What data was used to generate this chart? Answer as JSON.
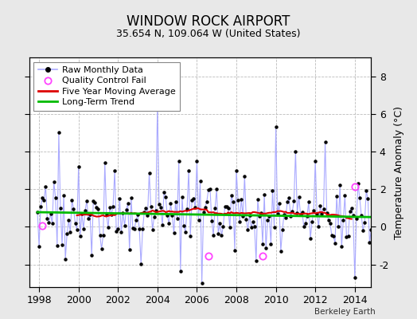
{
  "title": "WINDOW ROCK AIRPORT",
  "subtitle": "35.654 N, 109.064 W (United States)",
  "ylabel": "Temperature Anomaly (°C)",
  "credit": "Berkeley Earth",
  "xlim": [
    1997.5,
    2014.83
  ],
  "ylim": [
    -3.2,
    9.0
  ],
  "yticks": [
    -2,
    0,
    2,
    4,
    6,
    8
  ],
  "xticks": [
    1998,
    2000,
    2002,
    2004,
    2006,
    2008,
    2010,
    2012,
    2014
  ],
  "bg_color": "#e8e8e8",
  "plot_bg": "#ffffff",
  "raw_line_color": "#aaaaff",
  "raw_marker_color": "#000000",
  "ma_color": "#dd0000",
  "trend_color": "#00bb00",
  "qc_color": "#ff44ff",
  "seed": 17,
  "n_months": 204,
  "start_year": 1997.917
}
